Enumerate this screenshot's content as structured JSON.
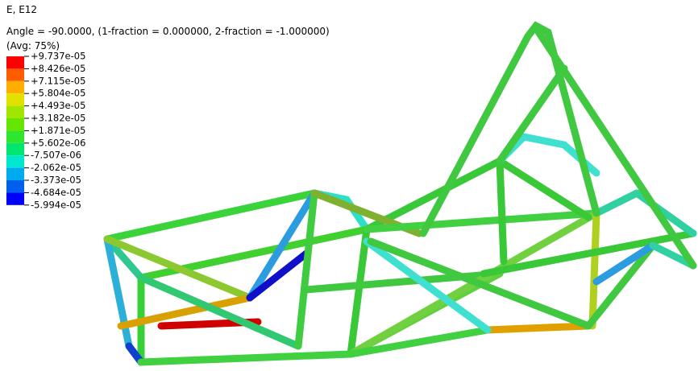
{
  "header": {
    "lines": [
      "E, E12",
      "Angle = -90.0000, (1-fraction = 0.000000, 2-fraction = -1.000000)",
      "(Avg: 75%)"
    ]
  },
  "legend": {
    "labels": [
      "+9.737e-05",
      "+8.426e-05",
      "+7.115e-05",
      "+5.804e-05",
      "+4.493e-05",
      "+3.182e-05",
      "+1.871e-05",
      "+5.602e-06",
      "-7.507e-06",
      "-2.062e-05",
      "-3.373e-05",
      "-4.684e-05",
      "-5.994e-05"
    ],
    "colors": [
      "#ff0000",
      "#ff5c00",
      "#ffae00",
      "#e4e000",
      "#a0e600",
      "#64e600",
      "#2ee62e",
      "#00e66e",
      "#00e6d0",
      "#00aaee",
      "#0060ee",
      "#0000ff"
    ]
  }
}
